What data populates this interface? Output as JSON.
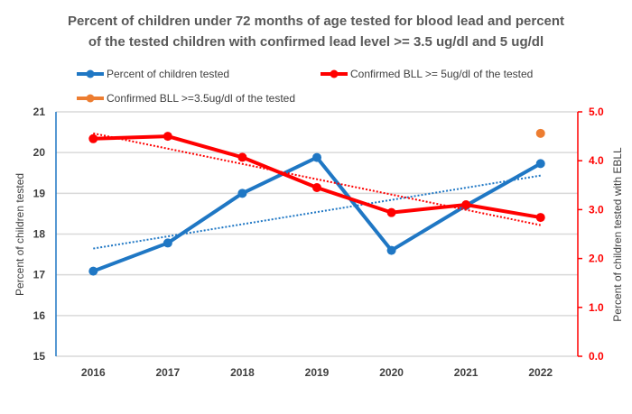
{
  "chart_data": {
    "type": "line",
    "title_lines": [
      "Percent of children under 72 months of age tested for blood lead and percent",
      "of the tested children with confirmed lead level >= 3.5 ug/dl and 5 ug/dl"
    ],
    "categories": [
      "2016",
      "2017",
      "2018",
      "2019",
      "2020",
      "2021",
      "2022"
    ],
    "ylabel_left": "Percent of children tested",
    "ylabel_right": "Percent of children tested with EBLL",
    "ylim_left": [
      15,
      21
    ],
    "ylim_right": [
      0,
      5
    ],
    "yticks_left": [
      "15",
      "16",
      "17",
      "18",
      "19",
      "20",
      "21"
    ],
    "yticks_right": [
      "0.0",
      "1.0",
      "2.0",
      "3.0",
      "4.0",
      "5.0"
    ],
    "grid": true,
    "legend_position": "top",
    "series": [
      {
        "name": "Percent of children tested",
        "axis": "left",
        "color": "#1f77c4",
        "trendline": true,
        "values": [
          17.09,
          17.78,
          19.0,
          19.88,
          17.6,
          18.7,
          19.73
        ]
      },
      {
        "name": "Confirmed BLL >= 5ug/dl of the tested",
        "axis": "right",
        "color": "#ff0000",
        "trendline": true,
        "values": [
          4.45,
          4.5,
          4.07,
          3.45,
          2.94,
          3.1,
          2.84
        ]
      },
      {
        "name": "Confirmed BLL >=3.5ug/dl of the tested",
        "axis": "right",
        "color": "#ed7d31",
        "trendline": false,
        "values": [
          null,
          null,
          null,
          null,
          null,
          null,
          4.56
        ]
      }
    ]
  }
}
